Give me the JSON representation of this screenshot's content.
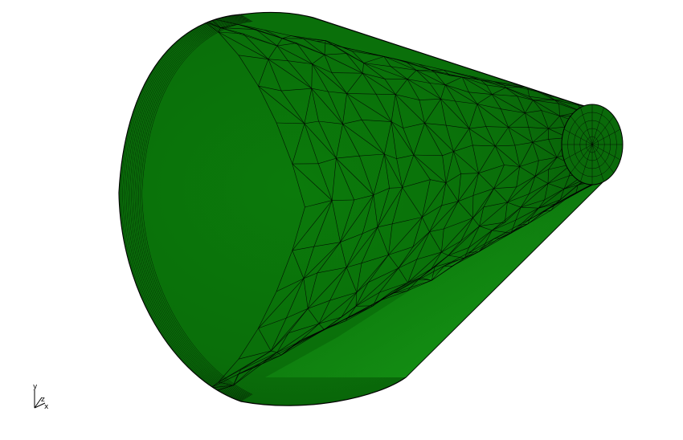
{
  "viewport": {
    "background": "#ffffff",
    "model": {
      "name": "truncated-cone-mesh",
      "fill_color": "#0f7a0f",
      "highlight_color": "#19a319",
      "shadow_color": "#0a5e0a",
      "wire_color": "#000000"
    },
    "axes": {
      "x_label": "x",
      "y_label": "y",
      "z_label": "z"
    }
  }
}
